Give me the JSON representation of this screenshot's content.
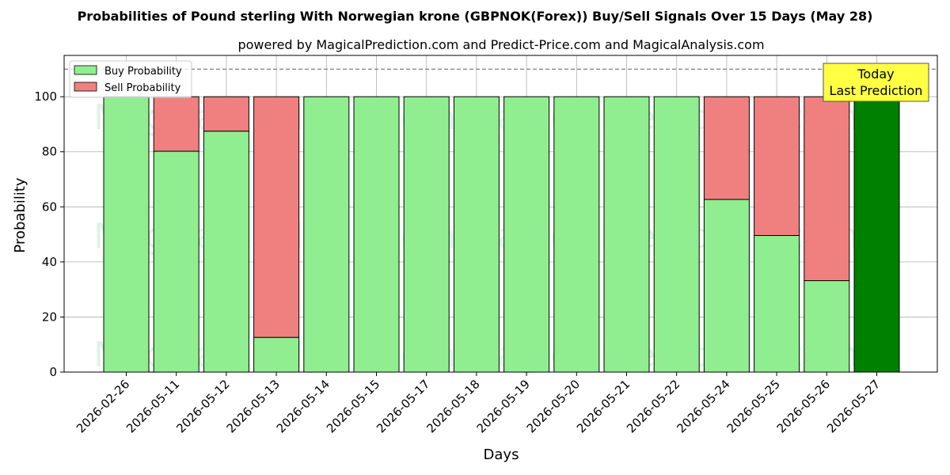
{
  "chart_data": {
    "type": "bar",
    "stacked": true,
    "title": "Probabilities of Pound sterling With Norwegian krone (GBPNOK(Forex)) Buy/Sell Signals Over 15 Days (May 28)",
    "subtitle": "powered by MagicalPrediction.com and Predict-Price.com and MagicalAnalysis.com",
    "xlabel": "Days",
    "ylabel": "Probability",
    "ylim": [
      0,
      115
    ],
    "yticks": [
      0,
      20,
      40,
      60,
      80,
      100
    ],
    "reference_line": 110,
    "grid": true,
    "legend_position": "top-left",
    "categories": [
      "2026-02-26",
      "2026-05-11",
      "2026-05-12",
      "2026-05-13",
      "2026-05-14",
      "2026-05-15",
      "2026-05-17",
      "2026-05-18",
      "2026-05-19",
      "2026-05-20",
      "2026-05-21",
      "2026-05-22",
      "2026-05-24",
      "2026-05-25",
      "2026-05-26",
      "2026-05-27"
    ],
    "series": [
      {
        "name": "Buy Probability",
        "color": "#90ee90",
        "values": [
          100,
          80.2,
          87.5,
          12.6,
          100,
          100,
          100,
          100,
          100,
          100,
          100,
          100,
          62.7,
          49.6,
          33.2,
          100
        ]
      },
      {
        "name": "Sell Probability",
        "color": "#f08080",
        "values": [
          0,
          19.8,
          12.5,
          87.4,
          0,
          0,
          0,
          0,
          0,
          0,
          0,
          0,
          37.3,
          50.4,
          66.8,
          0
        ]
      }
    ],
    "highlight": {
      "index": 15,
      "color": "#008000"
    },
    "annotation": {
      "lines": [
        "Today",
        "Last Prediction"
      ],
      "background": "#ffff44"
    },
    "watermarks": [
      "MagicalAnalysis.com",
      "MagicalPrediction.com"
    ]
  }
}
